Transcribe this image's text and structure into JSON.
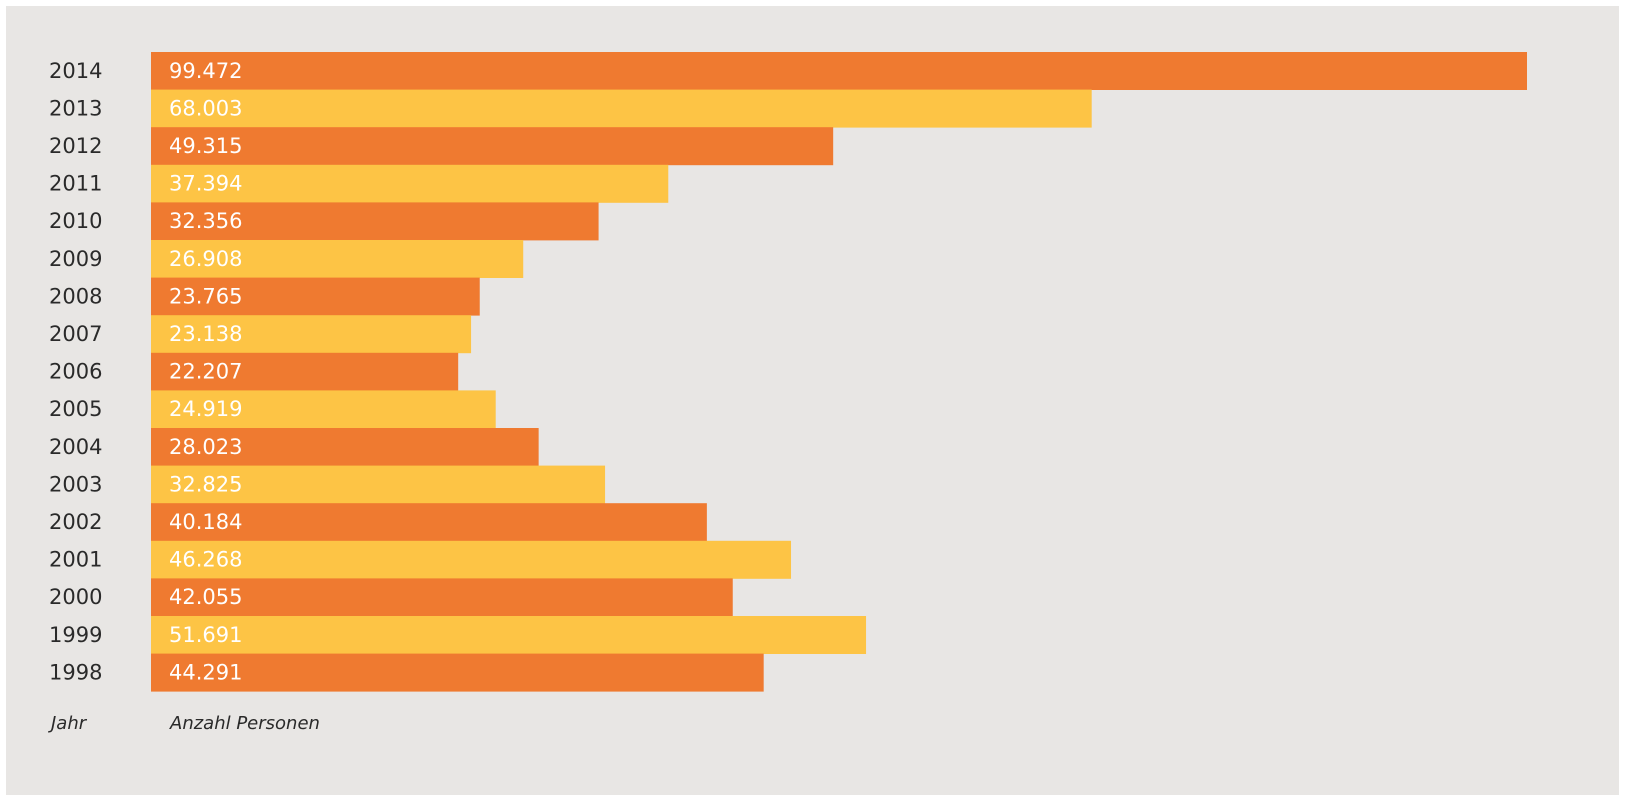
{
  "chart_data": {
    "type": "bar",
    "orientation": "horizontal",
    "categories": [
      "2014",
      "2013",
      "2012",
      "2011",
      "2010",
      "2009",
      "2008",
      "2007",
      "2006",
      "2005",
      "2004",
      "2003",
      "2002",
      "2001",
      "2000",
      "1999",
      "1998"
    ],
    "values": [
      99472,
      68003,
      49315,
      37394,
      32356,
      26908,
      23765,
      23138,
      22207,
      24919,
      28023,
      32825,
      40184,
      46268,
      42055,
      51691,
      44291
    ],
    "value_labels": [
      "99.472",
      "68.003",
      "49.315",
      "37.394",
      "32.356",
      "26.908",
      "23.765",
      "23.138",
      "22.207",
      "24.919",
      "28.023",
      "32.825",
      "40.184",
      "46.268",
      "42.055",
      "51.691",
      "44.291"
    ],
    "xlabel": "Anzahl Personen",
    "ylabel": "Jahr",
    "xlim": [
      0,
      99472
    ],
    "grid": false,
    "legend": "none",
    "colors": [
      "#ef7a30",
      "#fdc445"
    ]
  }
}
